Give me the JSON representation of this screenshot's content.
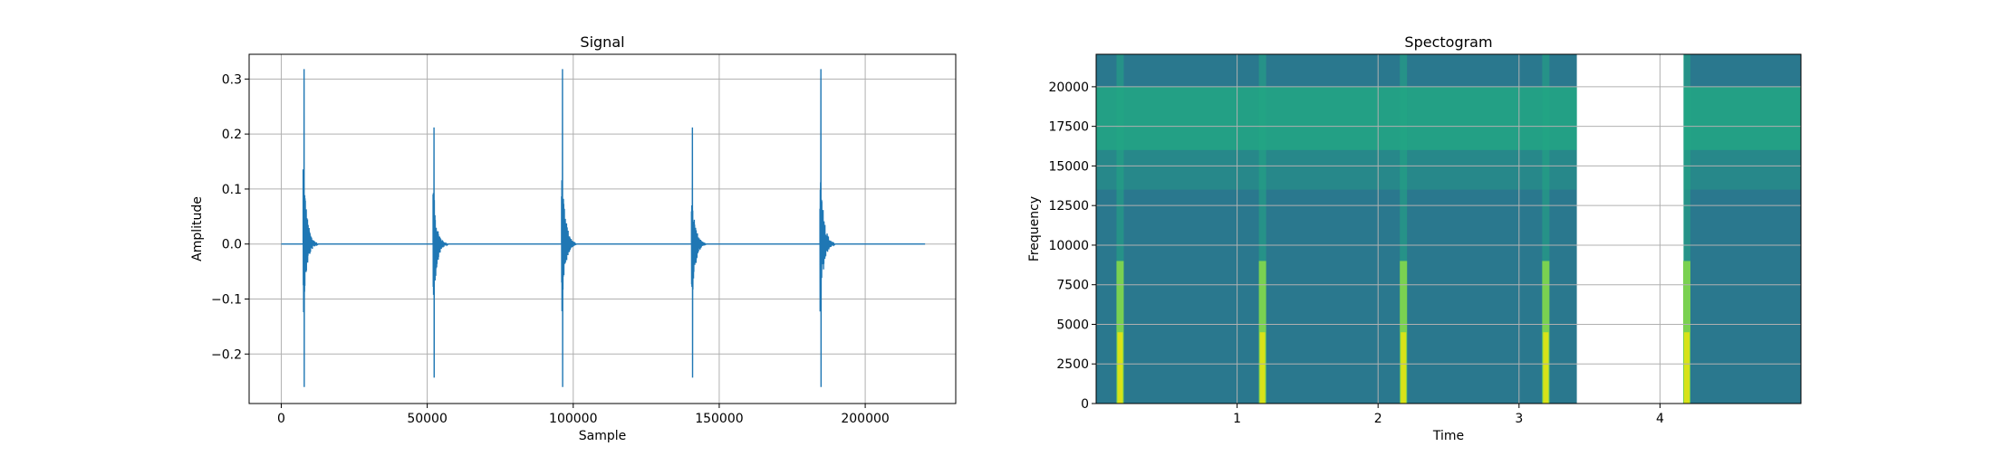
{
  "colors": {
    "signal_line": "#1f77b4",
    "grid": "#b0b0b0",
    "spec_background": "#2a788e",
    "spec_upper_band": "#22a784",
    "spec_hot": "#d8e219",
    "spec_bright": "#7ad151"
  },
  "chart_data": [
    {
      "type": "line",
      "title": "Signal",
      "xlabel": "Sample",
      "ylabel": "Amplitude",
      "xlim": [
        -11000,
        231000
      ],
      "ylim": [
        -0.29,
        0.345
      ],
      "grid": true,
      "xticks": [
        0,
        50000,
        100000,
        150000,
        200000
      ],
      "xtick_labels": [
        "0",
        "50000",
        "100000",
        "150000",
        "200000"
      ],
      "yticks": [
        -0.2,
        -0.1,
        0.0,
        0.1,
        0.2,
        0.3
      ],
      "ytick_labels": [
        "−0.2",
        "−0.1",
        "0.0",
        "0.1",
        "0.2",
        "0.3"
      ],
      "x_range": [
        0,
        220500
      ],
      "bursts": [
        {
          "onset": 7500,
          "max": 0.318,
          "min": -0.26
        },
        {
          "onset": 52000,
          "max": 0.212,
          "min": -0.243
        },
        {
          "onset": 96000,
          "max": 0.318,
          "min": -0.26
        },
        {
          "onset": 140500,
          "max": 0.212,
          "min": -0.243
        },
        {
          "onset": 184500,
          "max": 0.318,
          "min": -0.26
        }
      ]
    },
    {
      "type": "heatmap",
      "title": "Spectogram",
      "xlabel": "Time",
      "ylabel": "Frequency",
      "xlim": [
        0,
        5.0
      ],
      "ylim": [
        0,
        22050
      ],
      "grid": true,
      "xticks": [
        1,
        2,
        3,
        4
      ],
      "xtick_labels": [
        "1",
        "2",
        "3",
        "4"
      ],
      "yticks": [
        0,
        2500,
        5000,
        7500,
        10000,
        12500,
        15000,
        17500,
        20000
      ],
      "ytick_labels": [
        "0",
        "2500",
        "5000",
        "7500",
        "10000",
        "12500",
        "15000",
        "17500",
        "20000"
      ],
      "empty_time_range": [
        3.41,
        4.17
      ],
      "upper_band_hz": [
        16000,
        20000
      ],
      "onsets": [
        0.17,
        1.18,
        2.18,
        3.19,
        4.19
      ]
    }
  ]
}
